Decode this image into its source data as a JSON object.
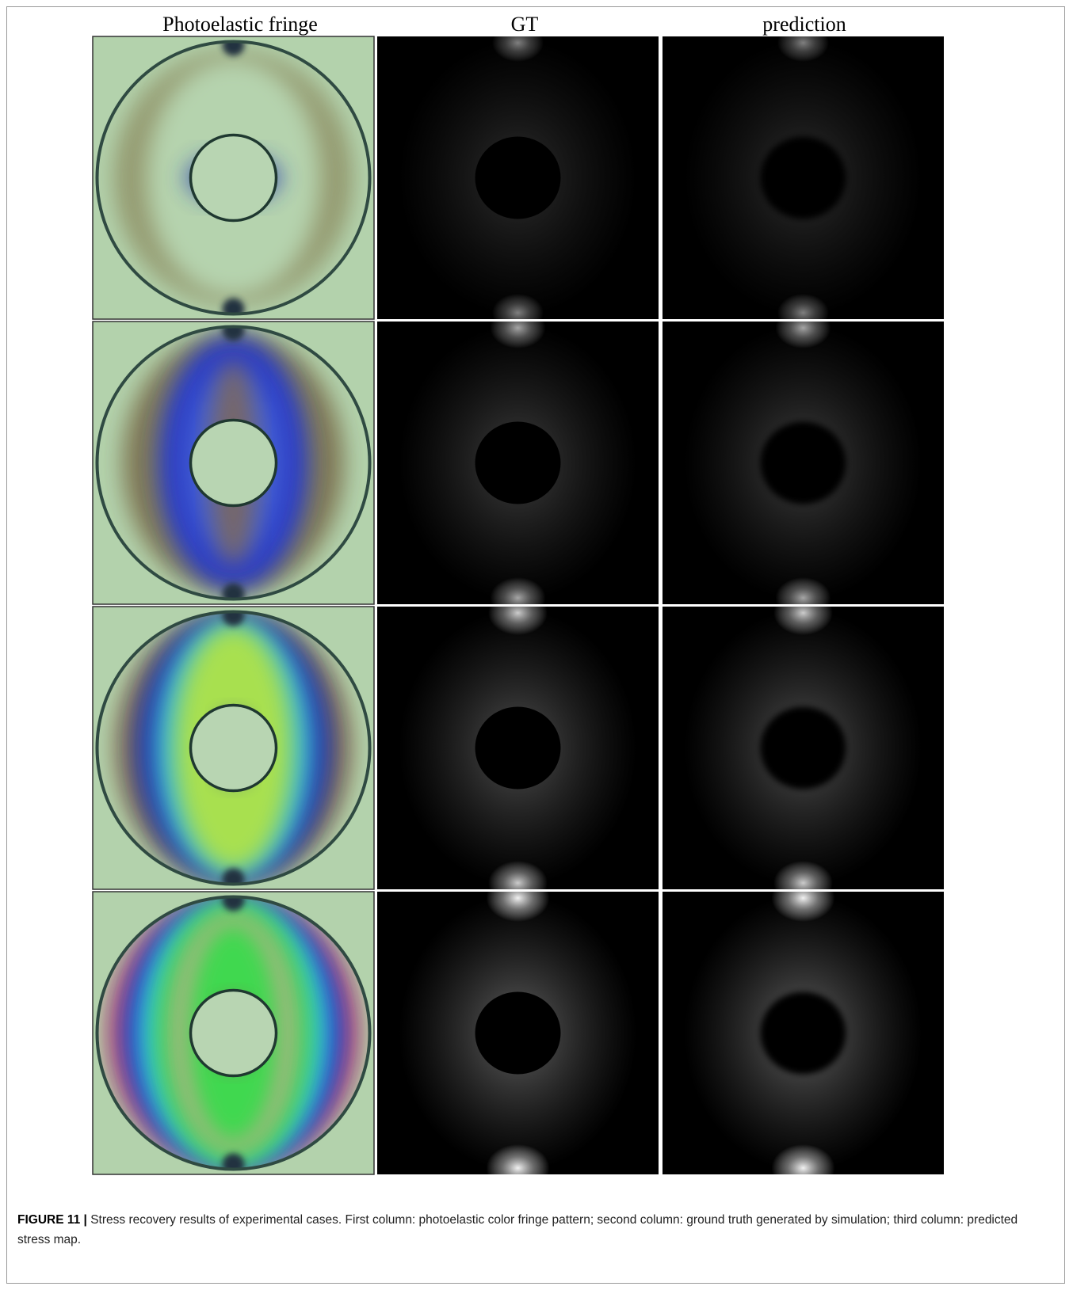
{
  "header": {
    "columns": [
      "Photoelastic fringe",
      "GT",
      "prediction"
    ]
  },
  "caption": {
    "label": "FIGURE 11 |",
    "text": "Stress recovery results of experimental cases. First column: photoelastic color fringe pattern; second column: ground truth generated by simulation; third column: predicted stress map."
  }
}
